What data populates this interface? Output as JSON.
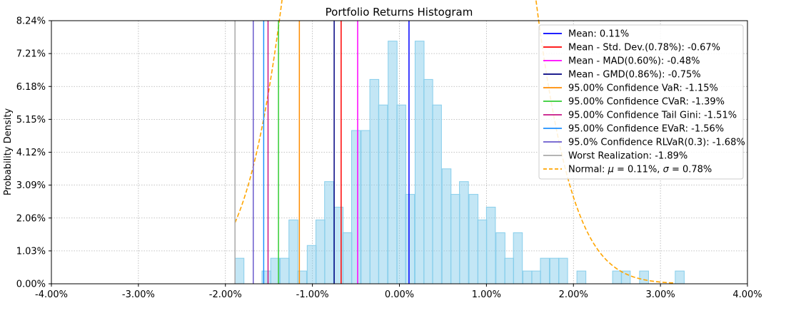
{
  "chart_data": {
    "type": "histogram",
    "title": "Portfolio Returns Histogram",
    "xlabel": "",
    "ylabel": "Probability Density",
    "xlim": [
      -0.04,
      0.04
    ],
    "ylim": [
      0,
      0.0824
    ],
    "x_ticks": [
      "-4.00%",
      "-3.00%",
      "-2.00%",
      "-1.00%",
      "0.00%",
      "1.00%",
      "2.00%",
      "3.00%",
      "4.00%"
    ],
    "x_tick_values": [
      -0.04,
      -0.03,
      -0.02,
      -0.01,
      0,
      0.01,
      0.02,
      0.03,
      0.04
    ],
    "y_ticks": [
      "0.00%",
      "1.03%",
      "2.06%",
      "3.09%",
      "4.12%",
      "5.15%",
      "6.18%",
      "7.21%",
      "8.24%"
    ],
    "y_tick_values": [
      0,
      0.0103,
      0.0206,
      0.0309,
      0.0412,
      0.0515,
      0.0618,
      0.0721,
      0.0824
    ],
    "grid": true,
    "legend_position": "top-right",
    "bar_color": "#87ceeb",
    "bin_width": 0.00103,
    "bins": [
      {
        "x": -0.0189,
        "density": 0.008
      },
      {
        "x": -0.0158,
        "density": 0.004
      },
      {
        "x": -0.0148,
        "density": 0.008
      },
      {
        "x": -0.0137,
        "density": 0.008
      },
      {
        "x": -0.0127,
        "density": 0.02
      },
      {
        "x": -0.0117,
        "density": 0.004
      },
      {
        "x": -0.0106,
        "density": 0.012
      },
      {
        "x": -0.0096,
        "density": 0.02
      },
      {
        "x": -0.0086,
        "density": 0.032
      },
      {
        "x": -0.0075,
        "density": 0.024
      },
      {
        "x": -0.0065,
        "density": 0.016
      },
      {
        "x": -0.0055,
        "density": 0.048
      },
      {
        "x": -0.0044,
        "density": 0.048
      },
      {
        "x": -0.0034,
        "density": 0.064
      },
      {
        "x": -0.0024,
        "density": 0.056
      },
      {
        "x": -0.0013,
        "density": 0.076
      },
      {
        "x": -0.0003,
        "density": 0.056
      },
      {
        "x": 0.0007,
        "density": 0.028
      },
      {
        "x": 0.0018,
        "density": 0.076
      },
      {
        "x": 0.0028,
        "density": 0.064
      },
      {
        "x": 0.0038,
        "density": 0.056
      },
      {
        "x": 0.0049,
        "density": 0.036
      },
      {
        "x": 0.0059,
        "density": 0.028
      },
      {
        "x": 0.0069,
        "density": 0.032
      },
      {
        "x": 0.008,
        "density": 0.028
      },
      {
        "x": 0.009,
        "density": 0.02
      },
      {
        "x": 0.01,
        "density": 0.024
      },
      {
        "x": 0.0111,
        "density": 0.016
      },
      {
        "x": 0.0121,
        "density": 0.008
      },
      {
        "x": 0.0131,
        "density": 0.016
      },
      {
        "x": 0.0142,
        "density": 0.004
      },
      {
        "x": 0.0152,
        "density": 0.004
      },
      {
        "x": 0.0162,
        "density": 0.008
      },
      {
        "x": 0.0173,
        "density": 0.008
      },
      {
        "x": 0.0183,
        "density": 0.008
      },
      {
        "x": 0.0204,
        "density": 0.004
      },
      {
        "x": 0.0245,
        "density": 0.004
      },
      {
        "x": 0.0255,
        "density": 0.004
      },
      {
        "x": 0.0276,
        "density": 0.004
      },
      {
        "x": 0.0317,
        "density": 0.004
      }
    ],
    "vertical_lines": [
      {
        "label": "Mean: 0.11%",
        "x": 0.0011,
        "color": "#0000ff"
      },
      {
        "label": "Mean - Std. Dev.(0.78%): -0.67%",
        "x": -0.0067,
        "color": "#ff0000"
      },
      {
        "label": "Mean - MAD(0.60%): -0.48%",
        "x": -0.0048,
        "color": "#ff00ff"
      },
      {
        "label": "Mean - GMD(0.86%): -0.75%",
        "x": -0.0075,
        "color": "#000080"
      },
      {
        "label": "95.00% Confidence VaR: -1.15%",
        "x": -0.0115,
        "color": "#ff8c00"
      },
      {
        "label": "95.00% Confidence CVaR: -1.39%",
        "x": -0.0139,
        "color": "#32cd32"
      },
      {
        "label": "95.00% Confidence Tail Gini: -1.51%",
        "x": -0.0151,
        "color": "#c71585"
      },
      {
        "label": "95.00% Confidence EVaR: -1.56%",
        "x": -0.0156,
        "color": "#1e90ff"
      },
      {
        "label": "95.0% Confidence RLVaR(0.3): -1.68%",
        "x": -0.0168,
        "color": "#6a5acd"
      },
      {
        "label": "Worst Realization: -1.89%",
        "x": -0.0189,
        "color": "#a9a9a9"
      }
    ],
    "normal_curve": {
      "label_prefix": "Normal: ",
      "label_mu": "μ",
      "label_mid": " = 0.11%, ",
      "label_sigma": "σ",
      "label_suffix": " = 0.78%",
      "mu": 0.0011,
      "sigma": 0.0078,
      "x_range": [
        -0.0189,
        0.0317
      ],
      "color": "#ffa500"
    }
  }
}
